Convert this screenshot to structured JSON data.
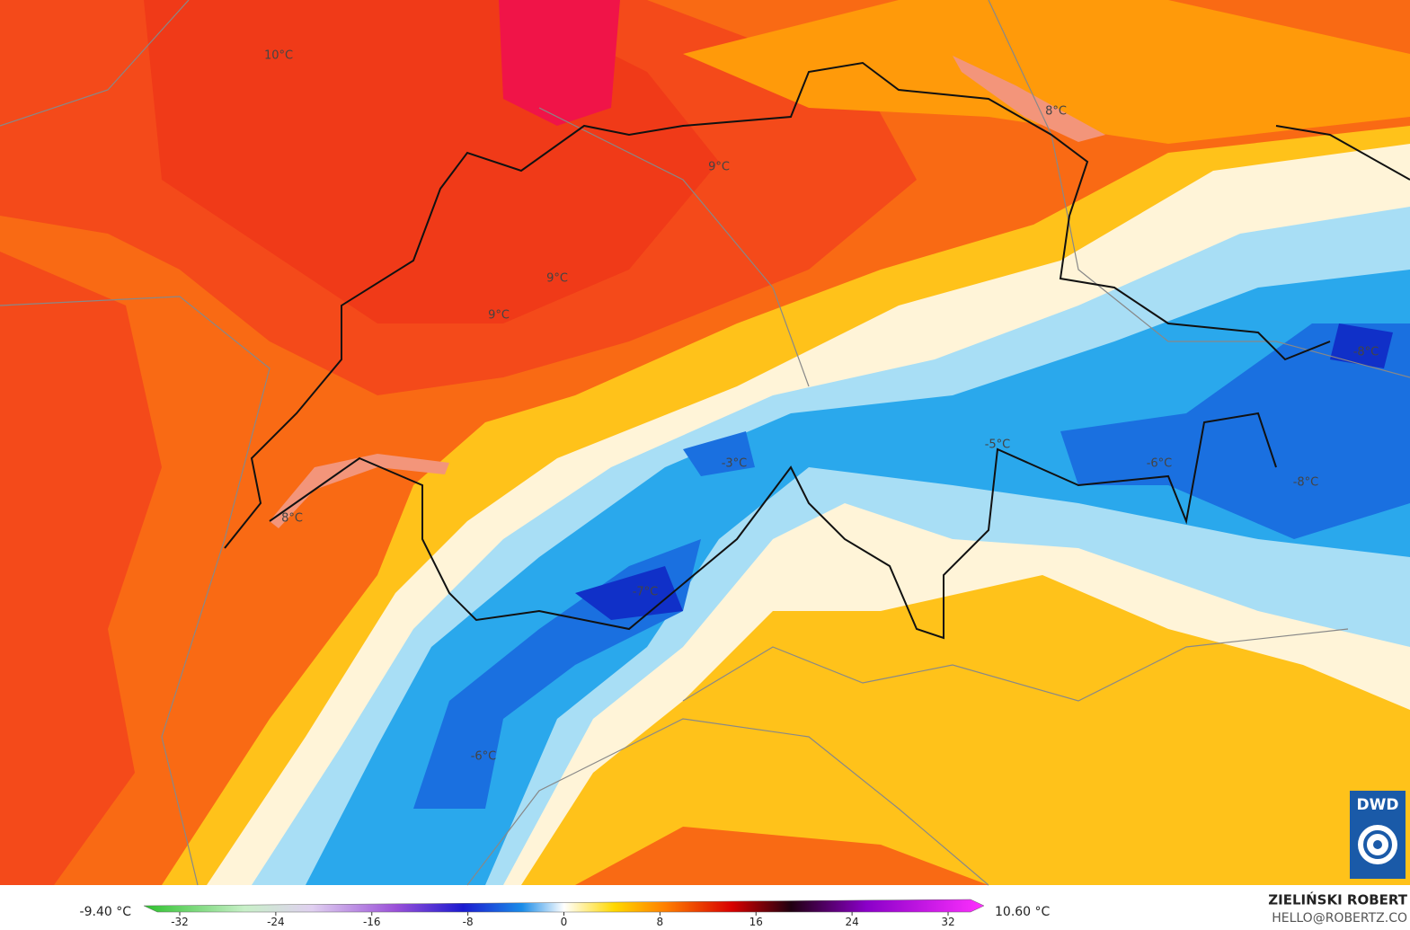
{
  "map": {
    "labels": [
      "10°C",
      "9°C",
      "9°C",
      "9°C",
      "8°C",
      "8°C",
      "-8°C",
      "-3°C",
      "-5°C",
      "-6°C",
      "-8°C",
      "-7°C",
      "-6°C"
    ]
  },
  "legend": {
    "min_label": "-9.40 °C",
    "max_label": "10.60 °C",
    "ticks": [
      -32,
      -24,
      -16,
      -8,
      0,
      8,
      16,
      24,
      32
    ]
  },
  "credit": {
    "name": "ZIELIŃSKI ROBERT",
    "email": "HELLO@ROBERTZ.CO"
  },
  "logo": "DWD"
}
